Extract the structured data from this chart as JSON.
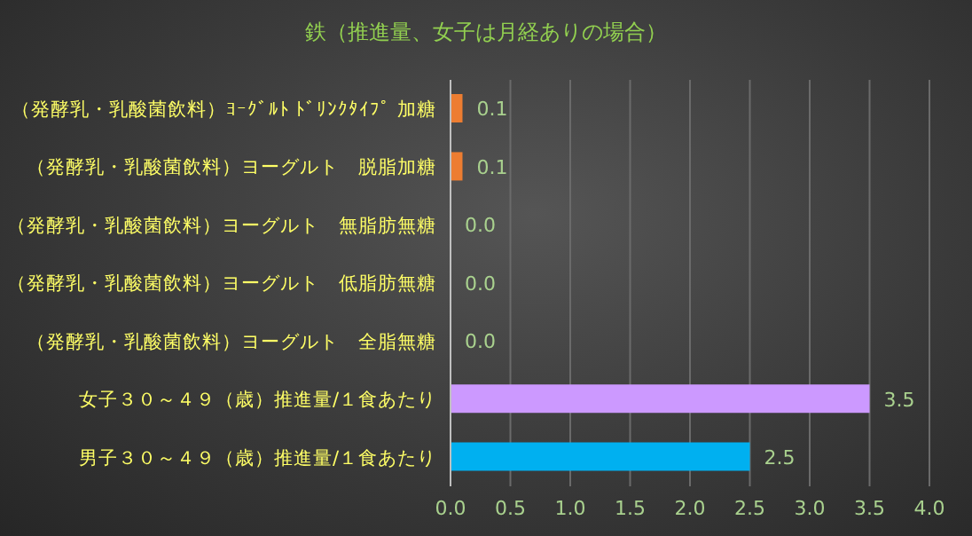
{
  "chart_data": {
    "type": "bar",
    "orientation": "horizontal",
    "title": "鉄（推進量、女子は月経ありの場合）",
    "categories": [
      "（発酵乳・乳酸菌飲料）ﾖｰｸﾞﾙﾄ ﾄﾞﾘﾝｸﾀｲﾌﾟ 加糖",
      "（発酵乳・乳酸菌飲料）ヨーグルト　脱脂加糖",
      "（発酵乳・乳酸菌飲料）ヨーグルト　無脂肪無糖",
      "（発酵乳・乳酸菌飲料）ヨーグルト　低脂肪無糖",
      "（発酵乳・乳酸菌飲料）ヨーグルト　全脂無糖",
      "女子３０～４９（歳）推進量/１食あたり",
      "男子３０～４９（歳）推進量/１食あたり"
    ],
    "values": [
      0.1,
      0.1,
      0,
      0,
      0,
      3.5,
      2.5
    ],
    "value_labels": [
      "0.1",
      "0.1",
      "0.0",
      "0.0",
      "0.0",
      "3.5",
      "2.5"
    ],
    "colors": [
      "#ed7d31",
      "#ed7d31",
      "#ed7d31",
      "#ed7d31",
      "#ed7d31",
      "#cc99ff",
      "#00b0f0"
    ],
    "xlim": [
      0,
      4
    ],
    "xticks": [
      {
        "value": 0,
        "label": "0.0"
      },
      {
        "value": 0.5,
        "label": "0.5"
      },
      {
        "value": 1,
        "label": "1.0"
      },
      {
        "value": 1.5,
        "label": "1.5"
      },
      {
        "value": 2,
        "label": "2.0"
      },
      {
        "value": 2.5,
        "label": "2.5"
      },
      {
        "value": 3,
        "label": "3.0"
      },
      {
        "value": 3.5,
        "label": "3.5"
      },
      {
        "value": 4,
        "label": "4.0"
      }
    ],
    "grid": "x",
    "legend": false
  }
}
